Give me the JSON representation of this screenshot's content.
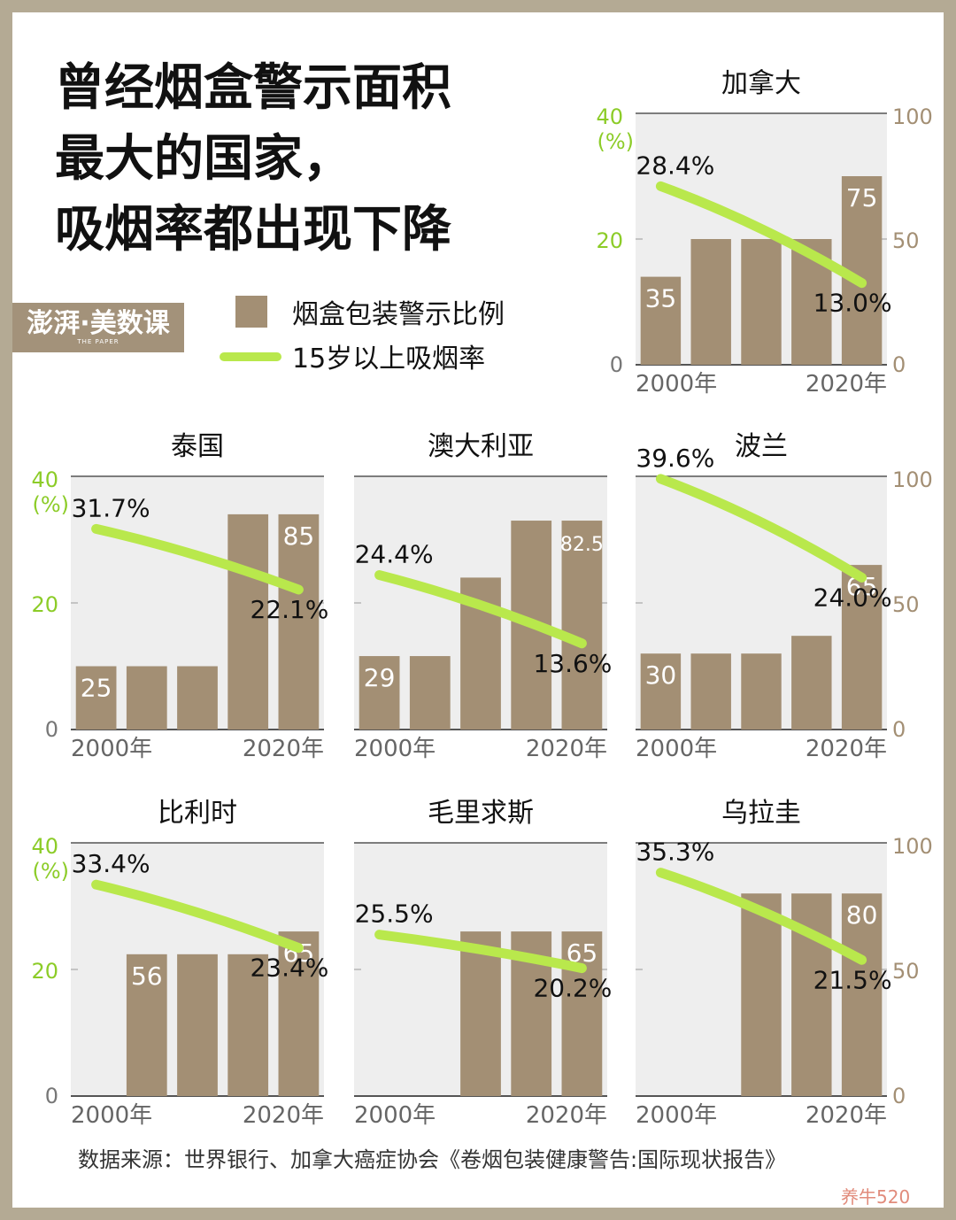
{
  "title_lines": [
    "曾经烟盒警示面积",
    "最大的国家，",
    "吸烟率都出现下降"
  ],
  "logo": {
    "main": "澎湃·美数课",
    "sub": "THE PAPER"
  },
  "legend": {
    "bar_label": "烟盒包装警示比例",
    "line_label": "15岁以上吸烟率"
  },
  "source": "数据来源：世界银行、加拿大癌症协会《卷烟包装健康警告:国际现状报告》",
  "watermark": "养牛520",
  "colors": {
    "bar": "#a38f74",
    "line": "#b9e84c",
    "left_axis": "#8ccc28",
    "right_axis": "#a38f74",
    "panel_bg": "#eeeeee"
  },
  "chart_data": [
    {
      "country": "加拿大",
      "type": "bar+line",
      "categories": [
        "2000年",
        "",
        "",
        "",
        "2020年"
      ],
      "bars": [
        35,
        50,
        50,
        50,
        75
      ],
      "bar_labels": [
        "35",
        "",
        "",
        "",
        "75"
      ],
      "line_start": 28.4,
      "line_end": 13.0,
      "line_labels": [
        "28.4%",
        "13.0%"
      ],
      "left_ticks": [
        "40",
        "20",
        "0"
      ],
      "left_unit": "(%)",
      "right_ticks": [
        "100",
        "50",
        "0"
      ],
      "ylim_left": [
        0,
        40
      ],
      "ylim_right": [
        0,
        100
      ]
    },
    {
      "country": "泰国",
      "type": "bar+line",
      "categories": [
        "2000年",
        "",
        "",
        "",
        "2020年"
      ],
      "bars": [
        25,
        25,
        25,
        85,
        85
      ],
      "bar_labels": [
        "25",
        "",
        "",
        "",
        "85"
      ],
      "line_start": 31.7,
      "line_end": 22.1,
      "line_labels": [
        "31.7%",
        "22.1%"
      ],
      "left_ticks": [
        "40",
        "20",
        "0"
      ],
      "left_unit": "(%)",
      "right_ticks": [],
      "ylim_left": [
        0,
        40
      ],
      "ylim_right": [
        0,
        100
      ]
    },
    {
      "country": "澳大利亚",
      "type": "bar+line",
      "categories": [
        "2000年",
        "",
        "",
        "",
        "2020年"
      ],
      "bars": [
        29,
        29,
        60,
        82.5,
        82.5
      ],
      "bar_labels": [
        "29",
        "",
        "",
        "",
        "82.5"
      ],
      "line_start": 24.4,
      "line_end": 13.6,
      "line_labels": [
        "24.4%",
        "13.6%"
      ],
      "left_ticks": [],
      "left_unit": "",
      "right_ticks": [],
      "ylim_left": [
        0,
        40
      ],
      "ylim_right": [
        0,
        100
      ]
    },
    {
      "country": "波兰",
      "type": "bar+line",
      "categories": [
        "2000年",
        "",
        "",
        "",
        "2020年"
      ],
      "bars": [
        30,
        30,
        30,
        37,
        65
      ],
      "bar_labels": [
        "30",
        "",
        "",
        "",
        "65"
      ],
      "line_start": 39.6,
      "line_end": 24.0,
      "line_labels": [
        "39.6%",
        "24.0%"
      ],
      "left_ticks": [],
      "left_unit": "",
      "right_ticks": [
        "100",
        "50",
        "0"
      ],
      "ylim_left": [
        0,
        40
      ],
      "ylim_right": [
        0,
        100
      ]
    },
    {
      "country": "比利时",
      "type": "bar+line",
      "categories": [
        "2000年",
        "",
        "",
        "",
        "2020年"
      ],
      "bars": [
        0,
        56,
        56,
        56,
        65
      ],
      "bar_labels": [
        "",
        "56",
        "",
        "",
        "65"
      ],
      "line_start": 33.4,
      "line_end": 23.4,
      "line_labels": [
        "33.4%",
        "23.4%"
      ],
      "left_ticks": [
        "40",
        "20",
        "0"
      ],
      "left_unit": "(%)",
      "right_ticks": [],
      "ylim_left": [
        0,
        40
      ],
      "ylim_right": [
        0,
        100
      ]
    },
    {
      "country": "毛里求斯",
      "type": "bar+line",
      "categories": [
        "2000年",
        "",
        "",
        "",
        "2020年"
      ],
      "bars": [
        0,
        0,
        65,
        65,
        65
      ],
      "bar_labels": [
        "",
        "",
        "",
        "",
        "65"
      ],
      "line_start": 25.5,
      "line_end": 20.2,
      "line_labels": [
        "25.5%",
        "20.2%"
      ],
      "left_ticks": [],
      "left_unit": "",
      "right_ticks": [],
      "ylim_left": [
        0,
        40
      ],
      "ylim_right": [
        0,
        100
      ]
    },
    {
      "country": "乌拉圭",
      "type": "bar+line",
      "categories": [
        "2000年",
        "",
        "",
        "",
        "2020年"
      ],
      "bars": [
        0,
        0,
        80,
        80,
        80
      ],
      "bar_labels": [
        "",
        "",
        "",
        "",
        "80"
      ],
      "line_start": 35.3,
      "line_end": 21.5,
      "line_labels": [
        "35.3%",
        "21.5%"
      ],
      "left_ticks": [],
      "left_unit": "",
      "right_ticks": [
        "100",
        "50",
        "0"
      ],
      "ylim_left": [
        0,
        40
      ],
      "ylim_right": [
        0,
        100
      ]
    }
  ]
}
